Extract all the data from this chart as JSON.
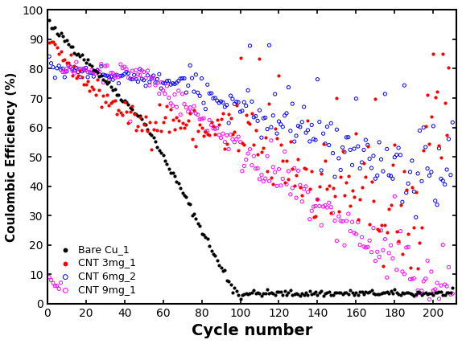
{
  "title": "",
  "xlabel": "Cycle number",
  "ylabel": "Coulombic Efficiency (%)",
  "xlim": [
    0,
    212
  ],
  "ylim": [
    0,
    100
  ],
  "xticks": [
    0,
    20,
    40,
    60,
    80,
    100,
    120,
    140,
    160,
    180,
    200
  ],
  "yticks": [
    0,
    10,
    20,
    30,
    40,
    50,
    60,
    70,
    80,
    90,
    100
  ],
  "background_color": "#ffffff",
  "legend_labels": [
    "Bare Cu_1",
    "CNT 3mg_1",
    "CNT 6mg_2",
    "CNT 9mg_1"
  ],
  "series": {
    "bare_cu": {
      "color": "#000000",
      "marker": "o",
      "filled": true,
      "ms": 9
    },
    "cnt3mg": {
      "color": "#ff0000",
      "marker": "o",
      "filled": true,
      "ms": 9
    },
    "cnt6mg": {
      "color": "#0000ff",
      "marker": "o",
      "filled": false,
      "ms": 9
    },
    "cnt9mg": {
      "color": "#ff00ff",
      "marker": "o",
      "filled": false,
      "ms": 9
    }
  }
}
